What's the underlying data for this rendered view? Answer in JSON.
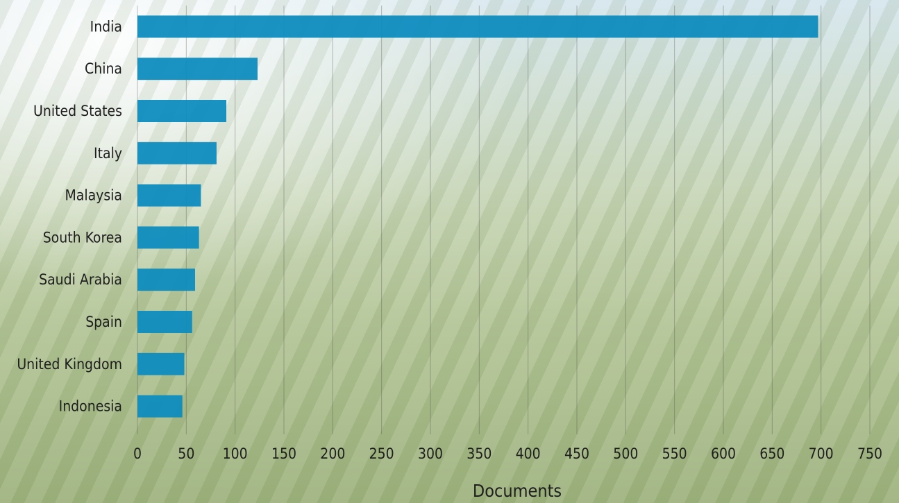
{
  "chart_data": {
    "type": "bar",
    "orientation": "horizontal",
    "categories": [
      "India",
      "China",
      "United States",
      "Italy",
      "Malaysia",
      "South Korea",
      "Saudi Arabia",
      "Spain",
      "United Kingdom",
      "Indonesia"
    ],
    "values": [
      697,
      123,
      91,
      81,
      65,
      63,
      59,
      56,
      48,
      46
    ],
    "xlabel": "Documents",
    "ylabel": "",
    "xlim": [
      0,
      750
    ],
    "xticks": [
      "0",
      "50",
      "100",
      "150",
      "200",
      "250",
      "300",
      "350",
      "400",
      "450",
      "500",
      "550",
      "600",
      "650",
      "700",
      "750"
    ],
    "grid": true,
    "bar_color": "#0e8cbf"
  }
}
